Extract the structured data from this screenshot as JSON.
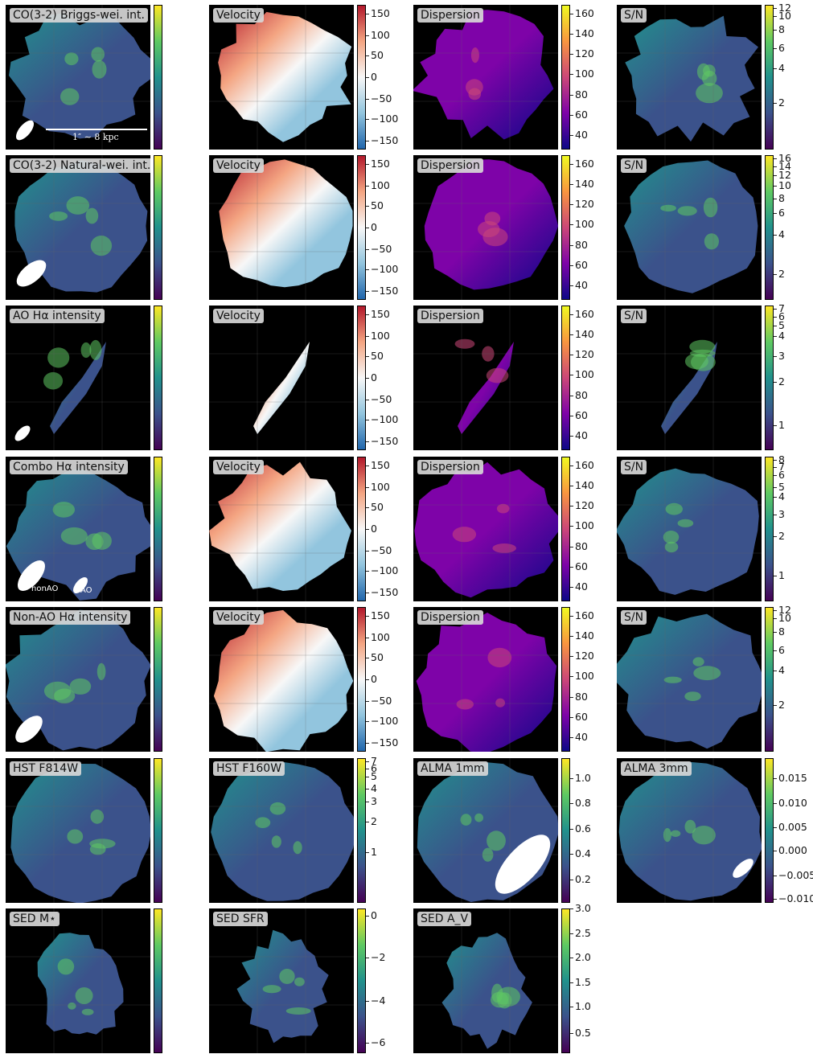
{
  "scalebar": {
    "label": "1″ ∼ 8 kpc"
  },
  "beam_labels": {
    "nonao": "nonAO",
    "ao": "AO"
  },
  "colors": {
    "viridis": [
      "#440154",
      "#3b528b",
      "#21918c",
      "#5ec962",
      "#fde725"
    ],
    "rdbu": [
      "#2166ac",
      "#92c5de",
      "#f7f7f7",
      "#f4a582",
      "#b2182b"
    ],
    "plasma": [
      "#0d0887",
      "#7e03a8",
      "#cc4778",
      "#f89540",
      "#f0f921"
    ]
  },
  "rows": [
    {
      "panels": [
        {
          "label": "CO(3-2) Briggs-wei. int.",
          "cmap": "viridis",
          "ticks": []
        },
        {
          "label": "Velocity",
          "cmap": "rdbu",
          "ticks": [
            "150",
            "100",
            "50",
            "0",
            "−50",
            "−100",
            "−150"
          ]
        },
        {
          "label": "Dispersion",
          "cmap": "plasma",
          "ticks": [
            "160",
            "140",
            "120",
            "100",
            "80",
            "60",
            "40"
          ]
        },
        {
          "label": "S/N",
          "cmap": "viridis",
          "ticks": [
            "12",
            "10",
            "8",
            "6",
            "4",
            "2"
          ]
        }
      ]
    },
    {
      "panels": [
        {
          "label": "CO(3-2) Natural-wei. int.",
          "cmap": "viridis",
          "ticks": []
        },
        {
          "label": "Velocity",
          "cmap": "rdbu",
          "ticks": [
            "150",
            "100",
            "50",
            "0",
            "−50",
            "−100",
            "−150"
          ]
        },
        {
          "label": "Dispersion",
          "cmap": "plasma",
          "ticks": [
            "160",
            "140",
            "120",
            "100",
            "80",
            "60",
            "40"
          ]
        },
        {
          "label": "S/N",
          "cmap": "viridis",
          "ticks": [
            "16",
            "14",
            "12",
            "10",
            "8",
            "6",
            "4",
            "2"
          ]
        }
      ]
    },
    {
      "panels": [
        {
          "label": "AO Hα intensity",
          "cmap": "viridis",
          "ticks": []
        },
        {
          "label": "Velocity",
          "cmap": "rdbu",
          "ticks": [
            "150",
            "100",
            "50",
            "0",
            "−50",
            "−100",
            "−150"
          ]
        },
        {
          "label": "Dispersion",
          "cmap": "plasma",
          "ticks": [
            "160",
            "140",
            "120",
            "100",
            "80",
            "60",
            "40"
          ]
        },
        {
          "label": "S/N",
          "cmap": "viridis",
          "ticks": [
            "7",
            "6",
            "5",
            "4",
            "3",
            "2",
            "1"
          ]
        }
      ]
    },
    {
      "panels": [
        {
          "label": "Combo Hα intensity",
          "cmap": "viridis",
          "ticks": []
        },
        {
          "label": "Velocity",
          "cmap": "rdbu",
          "ticks": [
            "150",
            "100",
            "50",
            "0",
            "−50",
            "−100",
            "−150"
          ]
        },
        {
          "label": "Dispersion",
          "cmap": "plasma",
          "ticks": [
            "160",
            "140",
            "120",
            "100",
            "80",
            "60",
            "40"
          ]
        },
        {
          "label": "S/N",
          "cmap": "viridis",
          "ticks": [
            "8",
            "7",
            "6",
            "5",
            "4",
            "3",
            "2",
            "1"
          ]
        }
      ]
    },
    {
      "panels": [
        {
          "label": "Non-AO Hα intensity",
          "cmap": "viridis",
          "ticks": []
        },
        {
          "label": "Velocity",
          "cmap": "rdbu",
          "ticks": [
            "150",
            "100",
            "50",
            "0",
            "−50",
            "−100",
            "−150"
          ]
        },
        {
          "label": "Dispersion",
          "cmap": "plasma",
          "ticks": [
            "160",
            "140",
            "120",
            "100",
            "80",
            "60",
            "40"
          ]
        },
        {
          "label": "S/N",
          "cmap": "viridis",
          "ticks": [
            "12",
            "10",
            "8",
            "6",
            "4",
            "2"
          ]
        }
      ]
    },
    {
      "panels": [
        {
          "label": "HST F814W",
          "cmap": "viridis",
          "ticks": []
        },
        {
          "label": "HST F160W",
          "cmap": "viridis",
          "ticks": [
            "7",
            "6",
            "5",
            "4",
            "3",
            "2",
            "1"
          ]
        },
        {
          "label": "ALMA 1mm",
          "cmap": "viridis",
          "ticks": [
            "1.0",
            "0.8",
            "0.6",
            "0.4",
            "0.2"
          ]
        },
        {
          "label": "ALMA 3mm",
          "cmap": "viridis",
          "ticks": [
            "0.015",
            "0.010",
            "0.005",
            "0.000",
            "−0.005",
            "−0.010"
          ]
        }
      ]
    },
    {
      "panels": [
        {
          "label": "SED M⋆",
          "cmap": "viridis",
          "ticks": []
        },
        {
          "label": "SED SFR",
          "cmap": "viridis",
          "ticks": [
            "0",
            "−2",
            "−4",
            "−6"
          ]
        },
        {
          "label": "SED A_V",
          "cmap": "viridis",
          "ticks": [
            "3.0",
            "2.5",
            "2.0",
            "1.5",
            "1.0",
            "0.5"
          ]
        }
      ]
    }
  ]
}
